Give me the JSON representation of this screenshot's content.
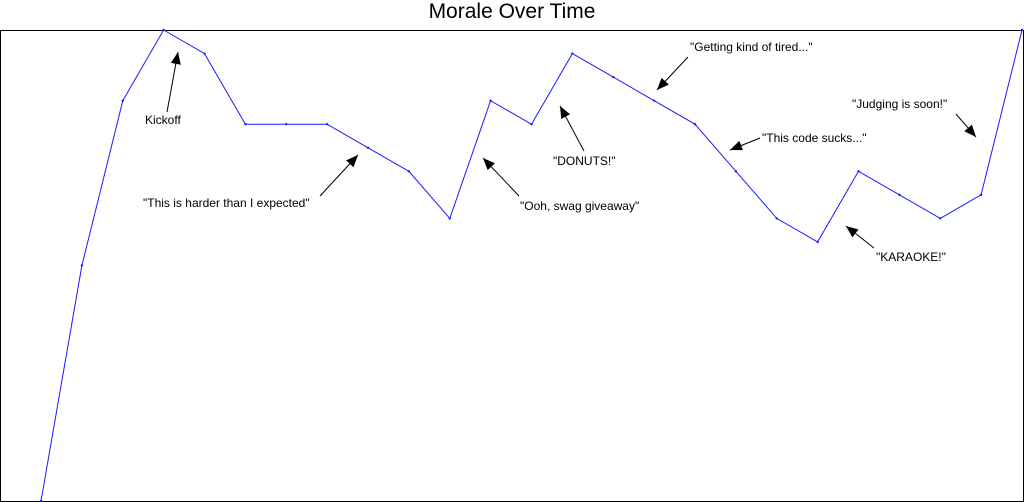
{
  "chart_data": {
    "type": "line",
    "title": "Morale Over Time",
    "xlabel": "",
    "ylabel": "",
    "grid": false,
    "x": [
      0,
      1,
      2,
      3,
      4,
      5,
      6,
      7,
      8,
      9,
      10,
      11,
      12,
      13,
      14,
      15,
      16,
      17,
      18,
      19,
      20,
      21,
      22,
      23,
      24
    ],
    "series": [
      {
        "color": "#1a1aff",
        "values": [
          0,
          50,
          85,
          100,
          95,
          80,
          80,
          80,
          75,
          70,
          60,
          85,
          80,
          95,
          90,
          85,
          80,
          70,
          60,
          55,
          70,
          65,
          60,
          65,
          100
        ]
      }
    ],
    "ylim": [
      0,
      100
    ],
    "annotations": [
      {
        "text": "Kickoff",
        "x": 3.3,
        "y": 94
      },
      {
        "text": "\"This is harder than I expected\"",
        "x": 8.6,
        "y": 73
      },
      {
        "text": "\"Ooh, swag giveaway\"",
        "x": 11.2,
        "y": 73
      },
      {
        "text": "\"DONUTS!\"",
        "x": 12.8,
        "y": 84
      },
      {
        "text": "\"Getting kind of tired...\"",
        "x": 15.5,
        "y": 87
      },
      {
        "text": "\"This code sucks...\"",
        "x": 17.2,
        "y": 74
      },
      {
        "text": "\"KARAOKE!\"",
        "x": 19.7,
        "y": 59
      },
      {
        "text": "\"Judging is soon!\"",
        "x": 23.4,
        "y": 77
      }
    ]
  }
}
